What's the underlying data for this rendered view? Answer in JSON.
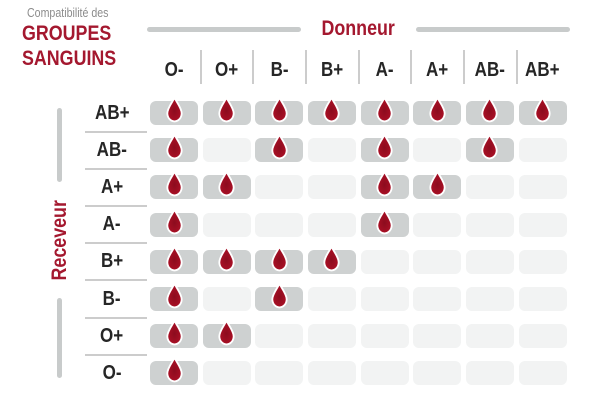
{
  "title": {
    "eyebrow": "Compatibilité des",
    "line1": "GROUPES",
    "line2": "SANGUINS"
  },
  "axes": {
    "donor_label": "Donneur",
    "receiver_label": "Receveur"
  },
  "icons": {
    "compatible_marker": "blood-drop-icon"
  },
  "colors": {
    "accent_red": "#a4182f",
    "drop_red": "#a50f24",
    "cell_filled": "#ced1d1",
    "cell_empty": "#f2f3f3",
    "divider_gray": "#cccccc",
    "axis_line_gray": "#c8cbcb",
    "label_ink": "#262626",
    "muted_gray": "#8c8c8c"
  },
  "chart_data": {
    "type": "heatmap",
    "title": "Compatibilité des GROUPES SANGUINS",
    "x_axis_label": "Donneur",
    "y_axis_label": "Receveur",
    "x_categories": [
      "O-",
      "O+",
      "B-",
      "B+",
      "A-",
      "A+",
      "AB-",
      "AB+"
    ],
    "y_categories": [
      "AB+",
      "AB-",
      "A+",
      "A-",
      "B+",
      "B-",
      "O+",
      "O-"
    ],
    "matrix": [
      [
        1,
        1,
        1,
        1,
        1,
        1,
        1,
        1
      ],
      [
        1,
        0,
        1,
        0,
        1,
        0,
        1,
        0
      ],
      [
        1,
        1,
        0,
        0,
        1,
        1,
        0,
        0
      ],
      [
        1,
        0,
        0,
        0,
        1,
        0,
        0,
        0
      ],
      [
        1,
        1,
        1,
        1,
        0,
        0,
        0,
        0
      ],
      [
        1,
        0,
        1,
        0,
        0,
        0,
        0,
        0
      ],
      [
        1,
        1,
        0,
        0,
        0,
        0,
        0,
        0
      ],
      [
        1,
        0,
        0,
        0,
        0,
        0,
        0,
        0
      ]
    ],
    "cell_marker_meaning": "drop = compatible",
    "legend_position": "none",
    "grid": "rounded-cell matrix; filled gray cell with blood drop = compatible, pale gray cell = incompatible"
  }
}
